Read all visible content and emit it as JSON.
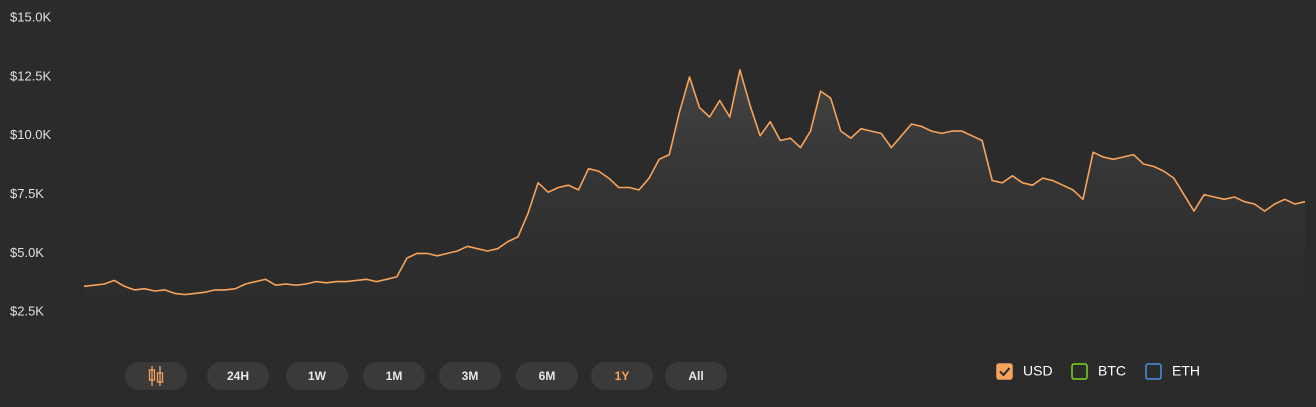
{
  "chart_data": {
    "type": "line",
    "series": [
      {
        "name": "USD",
        "color": "#f7a35c",
        "visible": true,
        "values": [
          3600,
          3650,
          3700,
          3850,
          3600,
          3450,
          3500,
          3400,
          3450,
          3300,
          3250,
          3300,
          3350,
          3450,
          3450,
          3500,
          3700,
          3800,
          3900,
          3650,
          3700,
          3650,
          3700,
          3800,
          3750,
          3800,
          3800,
          3850,
          3900,
          3800,
          3900,
          4000,
          4800,
          5000,
          5000,
          4900,
          5000,
          5100,
          5300,
          5200,
          5100,
          5200,
          5500,
          5700,
          6700,
          8000,
          7600,
          7800,
          7900,
          7700,
          8600,
          8500,
          8200,
          7800,
          7800,
          7700,
          8200,
          9000,
          9200,
          11000,
          12500,
          11200,
          10800,
          11500,
          10800,
          12800,
          11300,
          10000,
          10600,
          9800,
          9900,
          9500,
          10200,
          11900,
          11600,
          10200,
          9900,
          10300,
          10200,
          10100,
          9500,
          10000,
          10500,
          10400,
          10200,
          10100,
          10200,
          10200,
          10000,
          9800,
          8100,
          8000,
          8300,
          8000,
          7900,
          8200,
          8100,
          7900,
          7700,
          7300,
          9300,
          9100,
          9000,
          9100,
          9200,
          8800,
          8700,
          8500,
          8200,
          7500,
          6800,
          7500,
          7400,
          7300,
          7400,
          7200,
          7100,
          6800,
          7100,
          7300,
          7100,
          7200
        ]
      },
      {
        "name": "BTC",
        "color": "#7ed321",
        "visible": false,
        "values": []
      },
      {
        "name": "ETH",
        "color": "#4a90e2",
        "visible": false,
        "values": []
      }
    ],
    "ylim": [
      1000,
      15000
    ],
    "yticks": [
      {
        "value": 2500,
        "label": "$2.5K"
      },
      {
        "value": 5000,
        "label": "$5.0K"
      },
      {
        "value": 7500,
        "label": "$7.5K"
      },
      {
        "value": 10000,
        "label": "$10.0K"
      },
      {
        "value": 12500,
        "label": "$12.5K"
      },
      {
        "value": 15000,
        "label": "$15.0K"
      }
    ],
    "ranges": [
      {
        "label": "24H",
        "active": false
      },
      {
        "label": "1W",
        "active": false
      },
      {
        "label": "1M",
        "active": false
      },
      {
        "label": "3M",
        "active": false
      },
      {
        "label": "6M",
        "active": false
      },
      {
        "label": "1Y",
        "active": true
      },
      {
        "label": "All",
        "active": false
      }
    ]
  }
}
